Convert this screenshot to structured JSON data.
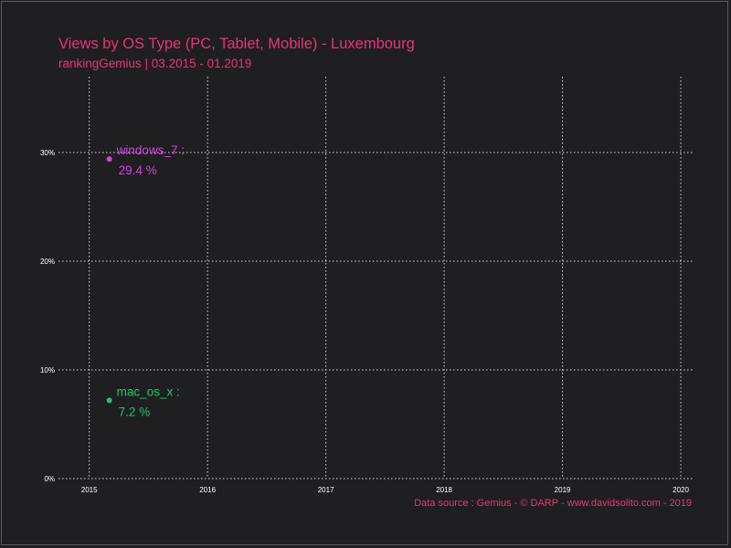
{
  "chart_data": {
    "type": "scatter",
    "title": "Views by OS Type (PC, Tablet, Mobile) - Luxembourg",
    "subtitle": "rankingGemius | 03.2015 - 01.2019",
    "caption": "Data source : Gemius - © DARP - www.davidsolito.com - 2019",
    "xlabel": "",
    "ylabel": "",
    "x_ticks": [
      "2015",
      "2016",
      "2017",
      "2018",
      "2019",
      "2020"
    ],
    "y_ticks": [
      "0%",
      "10%",
      "20%",
      "30%"
    ],
    "xlim": [
      2014.74,
      2020.1
    ],
    "ylim": [
      0,
      0.3
    ],
    "grid": true,
    "series": [
      {
        "name": "windows_7",
        "label": "windows_7 :",
        "value_label": "29.4 %",
        "x": 2015.17,
        "y": 0.294,
        "color": "#d63ee6"
      },
      {
        "name": "mac_os_x",
        "label": "mac_os_x :",
        "value_label": "7.2 %",
        "x": 2015.17,
        "y": 0.072,
        "color": "#22c46b"
      }
    ]
  }
}
